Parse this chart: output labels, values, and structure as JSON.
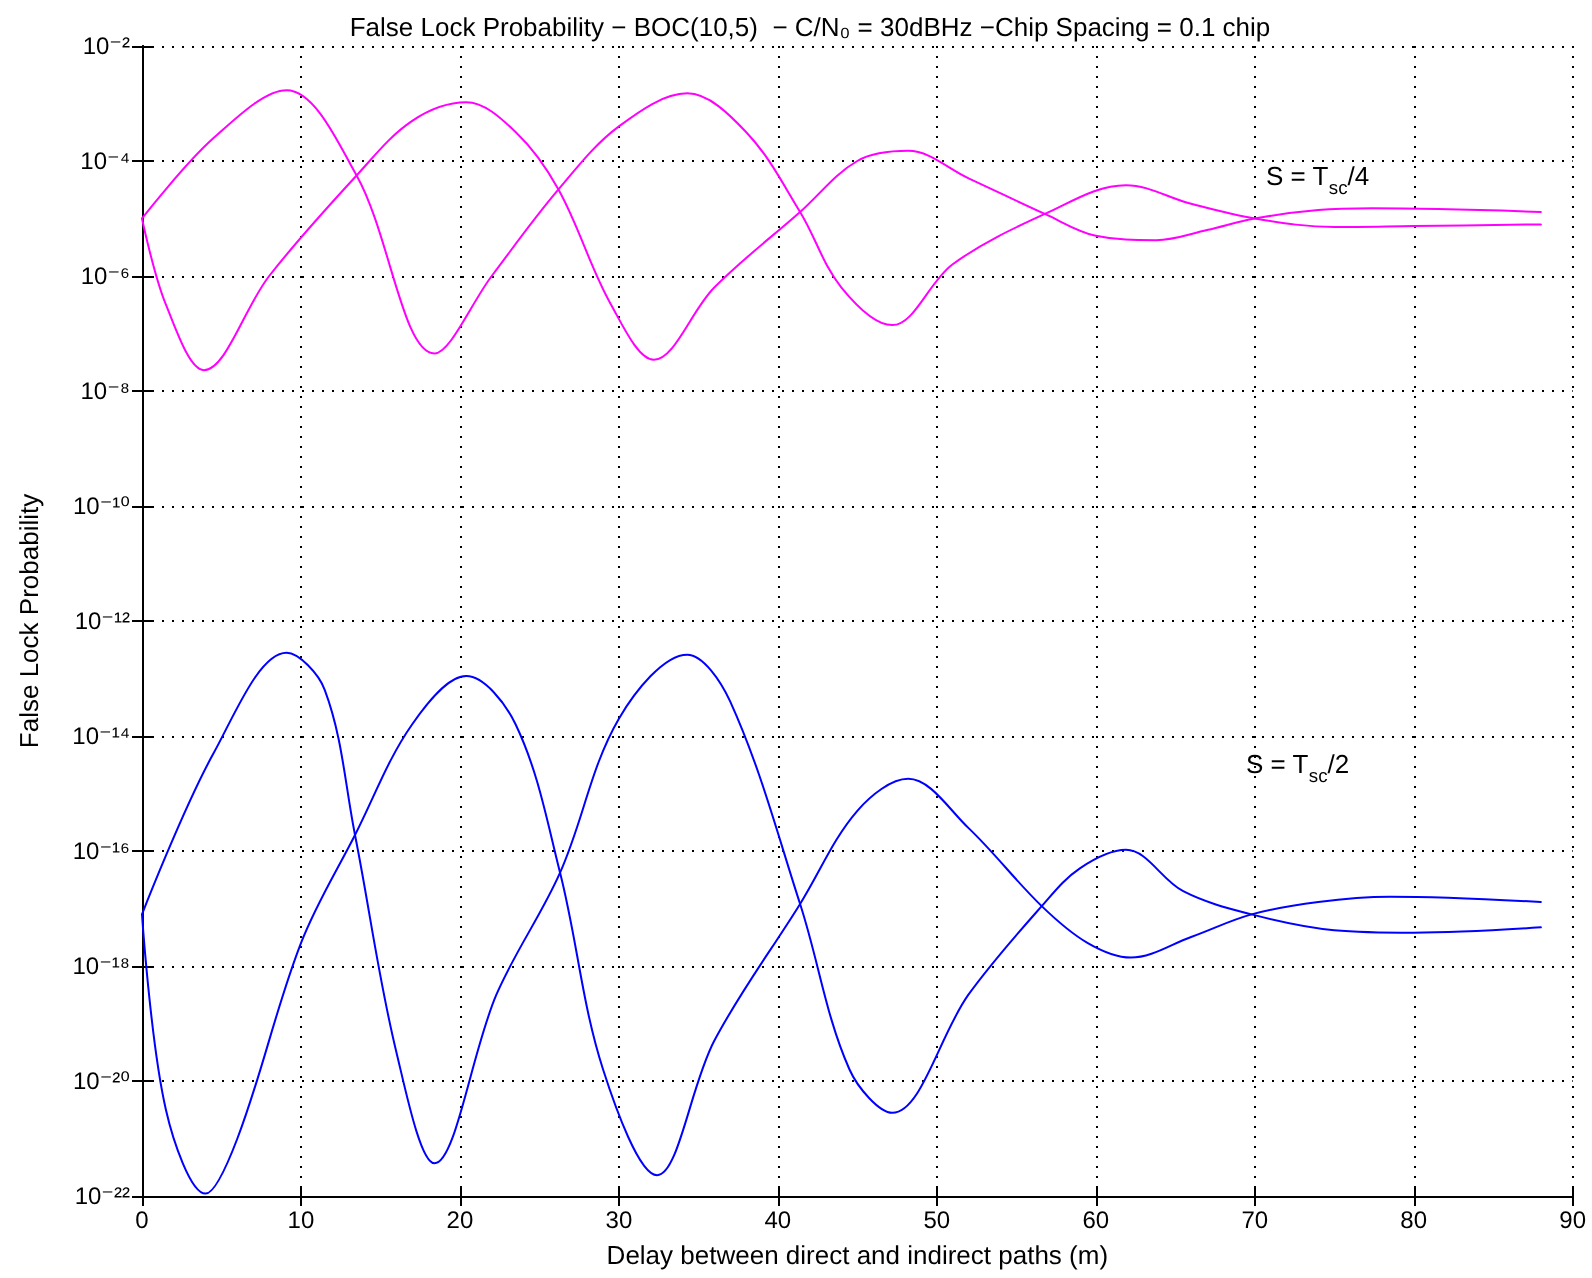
{
  "chart_data": {
    "type": "line",
    "title": "False Lock Probability − BOC(10,5)  − C/N₀ = 30dBHz −Chip Spacing = 0.1 chip",
    "xlabel": "Delay between direct and indirect paths (m)",
    "ylabel": "False Lock Probability",
    "log": "y",
    "grid": true,
    "marker": "none",
    "line_style": "solid",
    "xlim": [
      0,
      90
    ],
    "xticks": [
      0,
      10,
      20,
      30,
      40,
      50,
      60,
      70,
      80,
      90
    ],
    "ylim": [
      1e-22,
      0.01
    ],
    "yticks": [
      {
        "value": 1e-22,
        "label": "10⁻²²"
      },
      {
        "value": 1e-20,
        "label": "10⁻²⁰"
      },
      {
        "value": 1e-18,
        "label": "10⁻¹⁸"
      },
      {
        "value": 1e-16,
        "label": "10⁻¹⁶"
      },
      {
        "value": 1e-14,
        "label": "10⁻¹⁴"
      },
      {
        "value": 1e-12,
        "label": "10⁻¹²"
      },
      {
        "value": 1e-10,
        "label": "10⁻¹⁰"
      },
      {
        "value": 1e-08,
        "label": "10⁻⁸"
      },
      {
        "value": 1e-06,
        "label": "10⁻⁶"
      },
      {
        "value": 0.0001,
        "label": "10⁻⁴"
      },
      {
        "value": 0.01,
        "label": "10⁻²"
      }
    ],
    "annotations": [
      "S = T$_{sc}$/4",
      "S = T$_{sc}$/2"
    ],
    "series": [
      {
        "color": "#ff00ff",
        "x": [
          0,
          4.5,
          9.1,
          13.5,
          18.4,
          22,
          26.2,
          30,
          34.3,
          38,
          41.4,
          44,
          47.2,
          51,
          56.8,
          61.9,
          66,
          70,
          75,
          80,
          88
        ],
        "values": [
          1e-05,
          0.00025,
          0.0017,
          5.6e-05,
          4.5e-08,
          1e-06,
          3.2e-05,
          0.0004,
          0.0015,
          0.00032,
          1.3e-05,
          6.3e-07,
          1.4e-07,
          1.6e-06,
          1.2e-05,
          3.8e-05,
          1.8e-05,
          1e-05,
          7.1e-06,
          7.4e-06,
          7.9e-06
        ]
      },
      {
        "color": "#ff00ff",
        "x": [
          0,
          1.5,
          3.9,
          8,
          13.5,
          17,
          20.4,
          23.5,
          26.2,
          29.5,
          32.2,
          36,
          41.4,
          45,
          48.2,
          52,
          56.8,
          60,
          63.8,
          67,
          70,
          74,
          77.4,
          88
        ],
        "values": [
          1e-05,
          3.2e-07,
          2.3e-08,
          1e-06,
          5.6e-05,
          0.0005,
          0.00105,
          0.00032,
          3.2e-05,
          3.2e-07,
          3.5e-08,
          6.3e-07,
          1.3e-05,
          0.0001,
          0.00015,
          5e-05,
          1.2e-05,
          5e-06,
          4.2e-06,
          6.3e-06,
          1e-05,
          1.4e-05,
          1.5e-05,
          1.3e-05
        ]
      },
      {
        "color": "#0000ff",
        "x": [
          0,
          4.5,
          9.1,
          11.5,
          13.4,
          16,
          18.4,
          22.3,
          26.3,
          30,
          34.3,
          37,
          41.4,
          44.5,
          47.2,
          52,
          56.6,
          59,
          61.9,
          65.5,
          69.8,
          75,
          80,
          88
        ],
        "values": [
          7.9e-18,
          5e-15,
          2.8e-13,
          6.3e-14,
          1.9e-16,
          3.2e-20,
          3.7e-22,
          3.2e-19,
          4.2e-17,
          2e-14,
          2.6e-13,
          4e-14,
          1.2e-17,
          1.6e-20,
          2.8e-21,
          3.2e-19,
          1.1e-17,
          5e-17,
          1.05e-16,
          2e-17,
          7.9e-18,
          4.2e-18,
          3.8e-18,
          4.7e-18
        ]
      },
      {
        "color": "#0000ff",
        "x": [
          0,
          1.5,
          4,
          6,
          10,
          13.4,
          17,
          20.4,
          23.5,
          26.3,
          29,
          32.4,
          36,
          41.4,
          45,
          48.2,
          52,
          56.6,
          59.5,
          62.2,
          66,
          69.8,
          74,
          78.5,
          88
        ],
        "values": [
          7.9e-18,
          3.2e-21,
          1.1e-22,
          1e-21,
          2.5e-18,
          1.9e-16,
          1.6e-14,
          1.1e-13,
          1.6e-14,
          4.2e-17,
          1.6e-20,
          2.3e-22,
          5e-20,
          1.2e-17,
          5e-16,
          1.8e-15,
          2.5e-16,
          1.1e-17,
          2.5e-18,
          1.4e-18,
          3.2e-18,
          7.9e-18,
          1.3e-17,
          1.6e-17,
          1.3e-17
        ]
      }
    ]
  }
}
